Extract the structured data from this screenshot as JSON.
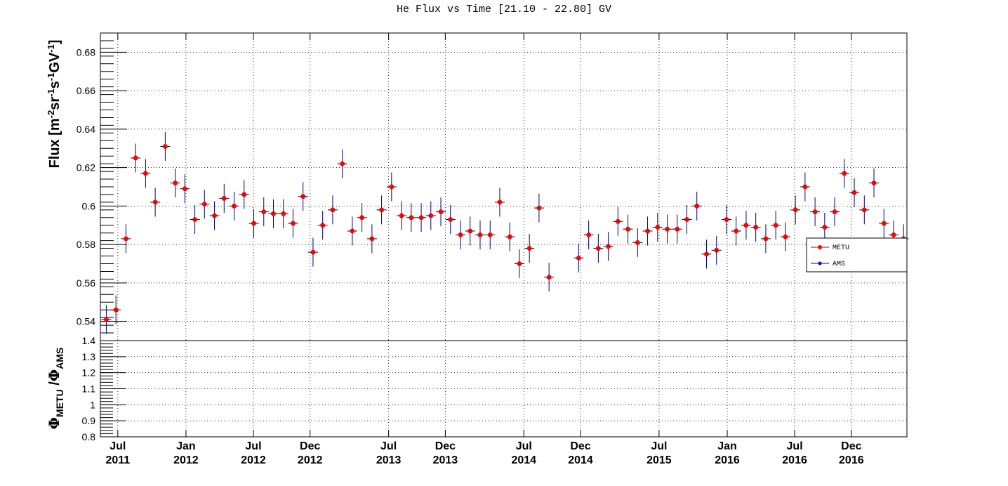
{
  "title": "He Flux vs Time [21.10 - 22.80] GV",
  "colors": {
    "metu_marker": "#ff0000",
    "metu_outline": "#cc0000",
    "error_bar": "#000080",
    "ams_marker": "#0000ff",
    "grid": "#000000"
  },
  "chart_data": [
    {
      "type": "scatter",
      "panel": "flux",
      "ylabel": "Flux [m^-2 sr^-1 s^-1 GV^-1]",
      "ylim": [
        0.53,
        0.69
      ],
      "yticks": [
        0.54,
        0.56,
        0.58,
        0.6,
        0.62,
        0.64,
        0.66,
        0.68
      ],
      "ytick_labels": [
        "0.54",
        "0.56",
        "0.58",
        "0.6",
        "0.62",
        "0.64",
        "0.66",
        "0.68"
      ],
      "grid": true,
      "legend_position": "right, lower-middle",
      "legend": [
        "METU",
        "AMS"
      ],
      "x_axis": {
        "type": "date",
        "range": [
          "2011-05-15",
          "2017-04-30"
        ],
        "ticks": [
          {
            "date": "2011-07-01",
            "month": "Jul",
            "year": "2011"
          },
          {
            "date": "2012-01-01",
            "month": "Jan",
            "year": "2012"
          },
          {
            "date": "2012-07-01",
            "month": "Jul",
            "year": "2012"
          },
          {
            "date": "2012-12-01",
            "month": "Dec",
            "year": "2012"
          },
          {
            "date": "2013-07-01",
            "month": "Jul",
            "year": "2013"
          },
          {
            "date": "2013-12-01",
            "month": "Dec",
            "year": "2013"
          },
          {
            "date": "2014-07-01",
            "month": "Jul",
            "year": "2014"
          },
          {
            "date": "2014-12-01",
            "month": "Dec",
            "year": "2014"
          },
          {
            "date": "2015-07-01",
            "month": "Jul",
            "year": "2015"
          },
          {
            "date": "2016-01-01",
            "month": "Jan",
            "year": "2016"
          },
          {
            "date": "2016-07-01",
            "month": "Jul",
            "year": "2016"
          },
          {
            "date": "2016-12-01",
            "month": "Dec",
            "year": "2016"
          }
        ]
      },
      "series": [
        {
          "name": "METU",
          "x": [
            "2011-05-31",
            "2011-06-26",
            "2011-07-23",
            "2011-08-18",
            "2011-09-14",
            "2011-10-10",
            "2011-11-06",
            "2011-12-03",
            "2011-12-29",
            "2012-01-25",
            "2012-02-20",
            "2012-03-18",
            "2012-04-13",
            "2012-05-10",
            "2012-06-06",
            "2012-07-02",
            "2012-07-29",
            "2012-08-24",
            "2012-09-20",
            "2012-10-16",
            "2012-11-12",
            "2012-12-09",
            "2013-01-04",
            "2013-01-31",
            "2013-02-26",
            "2013-03-25",
            "2013-04-20",
            "2013-05-17",
            "2013-06-12",
            "2013-07-09",
            "2013-08-05",
            "2013-08-31",
            "2013-09-27",
            "2013-10-23",
            "2013-11-19",
            "2013-12-15",
            "2014-01-11",
            "2014-02-06",
            "2014-03-05",
            "2014-04-01",
            "2014-04-27",
            "2014-05-24",
            "2014-06-19",
            "2014-07-16",
            "2014-08-11",
            "2014-09-07",
            "2014-11-26",
            "2014-12-23",
            "2015-01-18",
            "2015-02-14",
            "2015-03-12",
            "2015-04-08",
            "2015-05-04",
            "2015-05-31",
            "2015-06-27",
            "2015-07-23",
            "2015-08-19",
            "2015-09-14",
            "2015-10-11",
            "2015-11-06",
            "2015-12-03",
            "2015-12-30",
            "2016-01-25",
            "2016-02-21",
            "2016-03-18",
            "2016-04-14",
            "2016-05-11",
            "2016-06-06",
            "2016-07-03",
            "2016-07-29",
            "2016-08-25",
            "2016-09-20",
            "2016-10-17",
            "2016-11-12",
            "2016-12-09",
            "2017-01-05",
            "2017-01-31",
            "2017-02-27",
            "2017-03-25",
            "2017-04-21"
          ],
          "y": [
            0.541,
            0.546,
            0.583,
            0.625,
            0.617,
            0.602,
            0.631,
            0.612,
            0.609,
            0.593,
            0.601,
            0.595,
            0.604,
            0.6,
            0.606,
            0.591,
            0.597,
            0.596,
            0.596,
            0.591,
            0.605,
            0.576,
            0.59,
            0.598,
            0.622,
            0.587,
            0.594,
            0.583,
            0.598,
            0.61,
            0.595,
            0.594,
            0.594,
            0.595,
            0.597,
            0.593,
            0.585,
            0.587,
            0.585,
            0.585,
            0.602,
            0.584,
            0.57,
            0.578,
            0.599,
            0.563,
            0.573,
            0.585,
            0.578,
            0.579,
            0.592,
            0.588,
            0.581,
            0.587,
            0.589,
            0.588,
            0.588,
            0.593,
            0.6,
            0.575,
            0.577,
            0.593,
            0.587,
            0.59,
            0.589,
            0.583,
            0.59,
            0.584,
            0.598,
            0.61,
            0.597,
            0.589,
            0.597,
            0.617,
            0.607,
            0.598,
            0.612,
            0.591,
            0.585,
            0.583
          ],
          "y_error": 0.0075
        },
        {
          "name": "AMS",
          "x": [],
          "y": []
        }
      ]
    },
    {
      "type": "scatter",
      "panel": "ratio",
      "ylabel": "Φ_METU / Φ_AMS",
      "ylim": [
        0.8,
        1.4
      ],
      "yticks": [
        0.8,
        0.9,
        1.0,
        1.1,
        1.2,
        1.3,
        1.4
      ],
      "ytick_labels": [
        "0.8",
        "0.9",
        "1",
        "1.1",
        "1.2",
        "1.3",
        "1.4"
      ],
      "grid": true,
      "series": []
    }
  ]
}
